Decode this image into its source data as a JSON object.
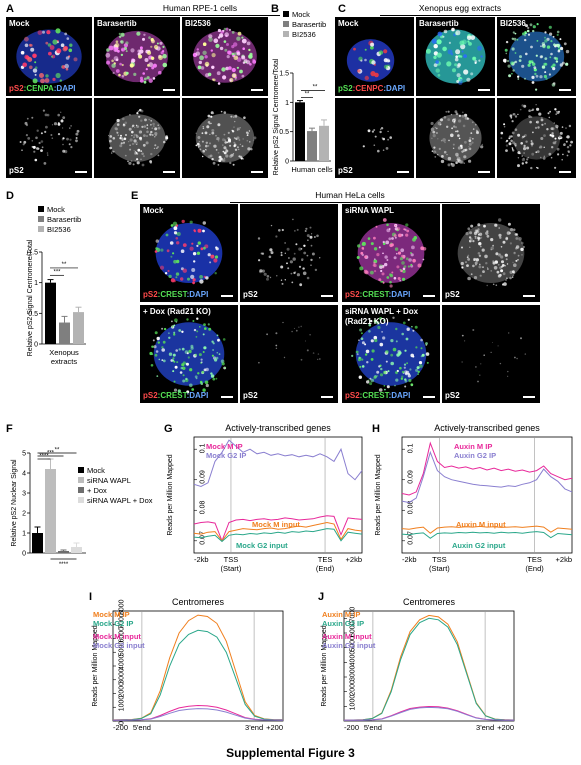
{
  "panel_a": {
    "letter": "A",
    "header": "Human RPE-1  cells",
    "columns": [
      "Mock",
      "Barasertib",
      "BI2536"
    ],
    "stain_prefix": "pS2",
    "stain_mid": ":CENPA",
    "stain_suffix": ":DAPI",
    "bottom_label": "pS2"
  },
  "panel_b": {
    "letter": "B",
    "xlabel": "Human cells",
    "ylabel": "Relative pS2 Signal Centromere/Total",
    "sig1": "**",
    "sig2": "**",
    "legend": [
      "Mock",
      "Barasertib",
      "BI2536"
    ],
    "colors": [
      "#000000",
      "#7f7f7f",
      "#b3b3b3"
    ],
    "chart_data": {
      "type": "bar",
      "categories": [
        "Mock",
        "Barasertib",
        "BI2536"
      ],
      "values": [
        1.0,
        0.51,
        0.6
      ],
      "errors": [
        0.03,
        0.05,
        0.1
      ],
      "yticks": [
        "0",
        "0.5",
        "1",
        "1.5"
      ],
      "ylim": [
        0,
        1.5
      ]
    }
  },
  "panel_c": {
    "letter": "C",
    "header": "Xenopus egg extracts",
    "columns": [
      "Mock",
      "Barasertib",
      "BI2536"
    ],
    "stain_prefix": "pS2",
    "stain_mid": ":CENPC",
    "stain_suffix": ":DAPI",
    "bottom_label": "pS2"
  },
  "panel_d": {
    "letter": "D",
    "xlabel_1": "Xenopus",
    "xlabel_2": "extracts",
    "ylabel": "Relative pS2 Signal Centromere/Total",
    "sig1": "**",
    "sig2": "***",
    "legend": [
      "Mock",
      "Barasertib",
      "BI2536"
    ],
    "colors": [
      "#000000",
      "#7f7f7f",
      "#b3b3b3"
    ],
    "chart_data": {
      "type": "bar",
      "categories": [
        "Mock",
        "Barasertib",
        "BI2536"
      ],
      "values": [
        1.0,
        0.35,
        0.52
      ],
      "errors": [
        0.05,
        0.1,
        0.08
      ],
      "yticks": [
        "0",
        "0.5",
        "1",
        "1.5"
      ],
      "ylim": [
        0,
        1.5
      ]
    }
  },
  "panel_e": {
    "letter": "E",
    "header": "Human HeLa cells",
    "mock": "Mock",
    "sirna": "siRNA WAPL",
    "dox": "+ Dox (Rad21 KO)",
    "sirna_dox_1": "siRNA WAPL + Dox",
    "sirna_dox_2": "(Rad21 KO)",
    "stain_prefix": "pS2",
    "stain_mid": ":CREST",
    "stain_suffix": ":DAPI",
    "ps2": "pS2"
  },
  "panel_f": {
    "letter": "F",
    "ylabel": "Relative pS2 Nuclear Signal",
    "sig_top": "**",
    "sig_2": "***",
    "sig_3": "****",
    "sig_bottom": "****",
    "legend": [
      "Mock",
      "siRNA WAPL",
      "+ Dox",
      "siRNA WAPL + Dox"
    ],
    "colors": [
      "#000000",
      "#bdbdbd",
      "#6e6e6e",
      "#dcdcdc"
    ],
    "chart_data": {
      "type": "bar",
      "categories": [
        "Mock",
        "siRNA WAPL",
        "+ Dox",
        "siRNA WAPL + Dox"
      ],
      "values": [
        1.0,
        4.2,
        0.1,
        0.3
      ],
      "errors": [
        0.3,
        0.5,
        0.05,
        0.2
      ],
      "yticks": [
        "0",
        "1",
        "2",
        "3",
        "4",
        "5"
      ],
      "ylim": [
        0,
        5
      ]
    }
  },
  "panel_g": {
    "letter": "G",
    "chart_data": {
      "type": "line",
      "title": "Actively-transcribed genes",
      "ylabel": "Reads per Million Mapped",
      "yticks": [
        "0.07",
        "0.08",
        "0.09",
        "0.1"
      ],
      "ylim": [
        0.066,
        0.104
      ],
      "xticks": [
        "-2kb",
        "TSS",
        "TES",
        "+2kb"
      ],
      "xsub": [
        "(Start)",
        "(End)"
      ],
      "series": [
        {
          "name": "Mock M IP",
          "color": "#e8289a",
          "values": [
            0.0755,
            0.076,
            0.0762,
            0.0758,
            0.07,
            0.076,
            0.0768,
            0.077,
            0.0766,
            0.077,
            0.0772,
            0.0768,
            0.077,
            0.0775,
            0.0772,
            0.0768,
            0.077,
            0.0772,
            0.0778,
            0.0782,
            0.078,
            0.072,
            0.0775,
            0.0772,
            0.077
          ]
        },
        {
          "name": "Mock G2 IP",
          "color": "#8a7fd0",
          "values": [
            0.0885,
            0.0878,
            0.089,
            0.096,
            0.099,
            0.103,
            0.101,
            0.099,
            0.1,
            0.0985,
            0.099,
            0.098,
            0.0985,
            0.0978,
            0.0982,
            0.0975,
            0.098,
            0.0975,
            0.0985,
            0.0975,
            0.096,
            0.1,
            0.092,
            0.09,
            0.093
          ]
        },
        {
          "name": "Mock M input",
          "color": "#f07f1e",
          "values": [
            0.0725,
            0.0722,
            0.0728,
            0.073,
            0.07,
            0.073,
            0.0735,
            0.074,
            0.0738,
            0.0736,
            0.074,
            0.0742,
            0.0738,
            0.074,
            0.0745,
            0.0748,
            0.0745,
            0.075,
            0.0755,
            0.076,
            0.0755,
            0.0705,
            0.074,
            0.0735,
            0.0732
          ]
        },
        {
          "name": "Mock G2 input",
          "color": "#2aa78a",
          "values": [
            0.0712,
            0.071,
            0.0715,
            0.0718,
            0.0698,
            0.0718,
            0.0722,
            0.072,
            0.0724,
            0.0722,
            0.0726,
            0.0724,
            0.0728,
            0.0725,
            0.073,
            0.0728,
            0.0732,
            0.073,
            0.0735,
            0.074,
            0.0738,
            0.07,
            0.0728,
            0.0725,
            0.0722
          ]
        }
      ]
    }
  },
  "panel_h": {
    "letter": "H",
    "chart_data": {
      "type": "line",
      "title": "Actively-transcribed genes",
      "ylabel": "Reads per Million Mapped",
      "yticks": [
        "0.07",
        "0.08",
        "0.09",
        "0.1"
      ],
      "ylim": [
        0.066,
        0.104
      ],
      "xticks": [
        "-2kb",
        "TSS",
        "TES",
        "+2kb"
      ],
      "xsub": [
        "(Start)",
        "(End)"
      ],
      "series": [
        {
          "name": "Auxin M IP",
          "color": "#e8289a",
          "values": [
            0.0855,
            0.085,
            0.086,
            0.092,
            0.102,
            0.096,
            0.094,
            0.0945,
            0.0938,
            0.0942,
            0.0935,
            0.094,
            0.0932,
            0.0938,
            0.093,
            0.0935,
            0.0928,
            0.0932,
            0.0925,
            0.093,
            0.0945,
            0.092,
            0.091,
            0.09,
            0.0905
          ]
        },
        {
          "name": "Auxin G2 IP",
          "color": "#8a7fd0",
          "values": [
            0.083,
            0.0825,
            0.084,
            0.091,
            0.099,
            0.093,
            0.091,
            0.09,
            0.0895,
            0.089,
            0.0885,
            0.0882,
            0.088,
            0.0878,
            0.0876,
            0.088,
            0.0878,
            0.0885,
            0.089,
            0.09,
            0.0935,
            0.091,
            0.0895,
            0.087,
            0.086
          ]
        },
        {
          "name": "Auxin M input",
          "color": "#f07f1e",
          "values": [
            0.074,
            0.0738,
            0.0742,
            0.0745,
            0.0725,
            0.0742,
            0.0745,
            0.0746,
            0.0744,
            0.0746,
            0.0745,
            0.0747,
            0.0745,
            0.0746,
            0.0744,
            0.0745,
            0.0746,
            0.0744,
            0.0746,
            0.0748,
            0.0745,
            0.0728,
            0.0742,
            0.074,
            0.0738
          ]
        },
        {
          "name": "Auxin G2 input",
          "color": "#2aa78a",
          "values": [
            0.0722,
            0.072,
            0.0724,
            0.0726,
            0.0708,
            0.0724,
            0.0726,
            0.0725,
            0.0727,
            0.0726,
            0.0728,
            0.0726,
            0.0727,
            0.0725,
            0.0728,
            0.0726,
            0.0727,
            0.0725,
            0.0728,
            0.073,
            0.0727,
            0.071,
            0.0724,
            0.0722,
            0.072
          ]
        }
      ]
    }
  },
  "panel_i": {
    "letter": "I",
    "chart_data": {
      "type": "line",
      "title": "Centromeres",
      "ylabel": "Reads per Million Mapped",
      "yticks": [
        "0",
        "1000",
        "2000",
        "3000",
        "4000",
        "5000",
        "6000",
        "7000",
        "8000"
      ],
      "ylim": [
        0,
        8000
      ],
      "xticks": [
        "-200",
        "5'end",
        "3'end",
        "+200"
      ],
      "series": [
        {
          "name": "Mock M IP",
          "color": "#f07f1e",
          "values": [
            80,
            90,
            110,
            200,
            600,
            2200,
            4600,
            6400,
            7300,
            7700,
            7600,
            7100,
            5800,
            3600,
            1400,
            400,
            150,
            100,
            90
          ]
        },
        {
          "name": "Mock G2 IP",
          "color": "#2aa78a",
          "values": [
            75,
            85,
            100,
            180,
            520,
            1900,
            4000,
            5600,
            6300,
            6600,
            6500,
            6100,
            5000,
            3100,
            1200,
            350,
            140,
            95,
            85
          ]
        },
        {
          "name": "Mock M input",
          "color": "#e8289a",
          "values": [
            60,
            65,
            70,
            90,
            160,
            400,
            700,
            950,
            1080,
            1130,
            1100,
            1000,
            800,
            520,
            250,
            120,
            80,
            70,
            65
          ]
        },
        {
          "name": "Mock G2 input",
          "color": "#8a7fd0",
          "values": [
            55,
            60,
            65,
            85,
            140,
            330,
            560,
            760,
            860,
            900,
            880,
            800,
            650,
            420,
            210,
            105,
            75,
            65,
            60
          ]
        }
      ]
    }
  },
  "panel_j": {
    "letter": "J",
    "chart_data": {
      "type": "line",
      "title": "Centromeres",
      "ylabel": "Reads per Million Mapped",
      "yticks": [
        "1000",
        "2000",
        "3000",
        "4000",
        "5000",
        "6000",
        "7000"
      ],
      "ylim": [
        0,
        7500
      ],
      "xticks": [
        "-200",
        "5'end",
        "3'end",
        "+200"
      ],
      "series": [
        {
          "name": "Auxin M IP",
          "color": "#f07f1e",
          "values": [
            60,
            70,
            90,
            180,
            550,
            2100,
            4400,
            6100,
            6900,
            7200,
            7100,
            6600,
            5400,
            3300,
            1250,
            360,
            130,
            85,
            70
          ]
        },
        {
          "name": "Auxin G2 IP",
          "color": "#2aa78a",
          "values": [
            55,
            65,
            85,
            170,
            520,
            2000,
            4200,
            5900,
            6700,
            7000,
            6900,
            6400,
            5200,
            3200,
            1200,
            340,
            125,
            80,
            65
          ]
        },
        {
          "name": "Auxin M input",
          "color": "#e8289a",
          "values": [
            50,
            55,
            60,
            80,
            140,
            360,
            620,
            850,
            950,
            990,
            970,
            880,
            700,
            450,
            220,
            110,
            70,
            60,
            55
          ]
        },
        {
          "name": "Auxin G2 input",
          "color": "#8a7fd0",
          "values": [
            45,
            50,
            55,
            75,
            130,
            330,
            570,
            790,
            890,
            930,
            910,
            830,
            660,
            420,
            205,
            100,
            65,
            55,
            50
          ]
        }
      ]
    }
  },
  "caption": "Supplemental Figure 3"
}
